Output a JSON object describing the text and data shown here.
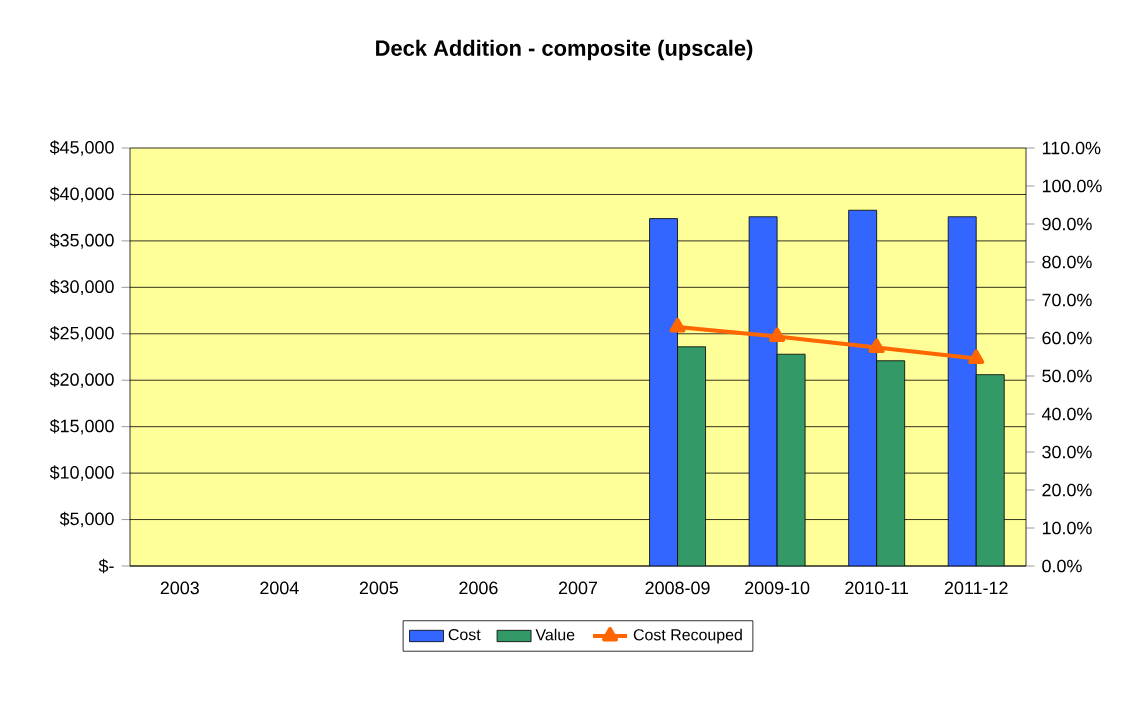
{
  "chart_data": {
    "type": "bar",
    "title": "Deck Addition - composite (upscale)",
    "categories": [
      "2003",
      "2004",
      "2005",
      "2006",
      "2007",
      "2008-09",
      "2009-10",
      "2010-11",
      "2011-12"
    ],
    "series": [
      {
        "name": "Cost",
        "color": "#3366ff",
        "values": [
          null,
          null,
          null,
          null,
          null,
          37400,
          37600,
          38300,
          37600
        ]
      },
      {
        "name": "Value",
        "color": "#339966",
        "values": [
          null,
          null,
          null,
          null,
          null,
          23600,
          22800,
          22100,
          20600
        ]
      },
      {
        "name": "Cost Recouped",
        "type": "line",
        "axis": "y2",
        "color": "#ff6600",
        "marker": "triangle",
        "values": [
          null,
          null,
          null,
          null,
          null,
          62.9,
          60.4,
          57.5,
          54.6
        ]
      }
    ],
    "ylim": [
      0,
      45000
    ],
    "yticks": [
      {
        "value": 0,
        "label": "$-"
      },
      {
        "value": 5000,
        "label": "$5,000"
      },
      {
        "value": 10000,
        "label": "$10,000"
      },
      {
        "value": 15000,
        "label": "$15,000"
      },
      {
        "value": 20000,
        "label": "$20,000"
      },
      {
        "value": 25000,
        "label": "$25,000"
      },
      {
        "value": 30000,
        "label": "$30,000"
      },
      {
        "value": 35000,
        "label": "$35,000"
      },
      {
        "value": 40000,
        "label": "$40,000"
      },
      {
        "value": 45000,
        "label": "$45,000"
      }
    ],
    "y2lim": [
      0,
      110
    ],
    "y2ticks": [
      {
        "value": 0,
        "label": "0.0%"
      },
      {
        "value": 10,
        "label": "10.0%"
      },
      {
        "value": 20,
        "label": "20.0%"
      },
      {
        "value": 30,
        "label": "30.0%"
      },
      {
        "value": 40,
        "label": "40.0%"
      },
      {
        "value": 50,
        "label": "50.0%"
      },
      {
        "value": 60,
        "label": "60.0%"
      },
      {
        "value": 70,
        "label": "70.0%"
      },
      {
        "value": 80,
        "label": "80.0%"
      },
      {
        "value": 90,
        "label": "90.0%"
      },
      {
        "value": 100,
        "label": "100.0%"
      },
      {
        "value": 110,
        "label": "110.0%"
      }
    ],
    "grid": "y",
    "legend": "bottom"
  }
}
